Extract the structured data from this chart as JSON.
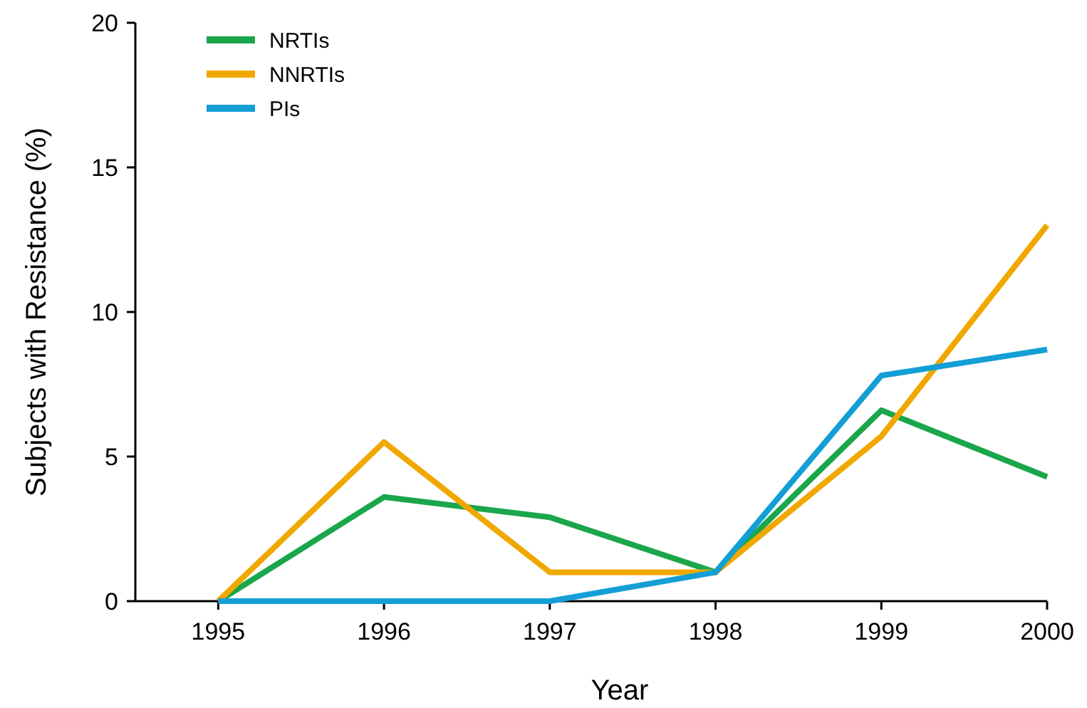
{
  "chart_data": {
    "type": "line",
    "xlabel": "Year",
    "ylabel": "Subjects with Resistance (%)",
    "x": [
      1995,
      1996,
      1997,
      1998,
      1999,
      2000
    ],
    "series": [
      {
        "name": "NRTIs",
        "color": "#1aa64b",
        "values": [
          0,
          3.6,
          2.9,
          1.0,
          6.6,
          4.3
        ]
      },
      {
        "name": "NNRTIs",
        "color": "#f0a800",
        "values": [
          0,
          5.5,
          1.0,
          1.0,
          5.7,
          13.0
        ]
      },
      {
        "name": "PIs",
        "color": "#139fd6",
        "values": [
          0,
          0,
          0,
          1.0,
          7.8,
          8.7
        ]
      }
    ],
    "xlim": [
      1994.5,
      2000
    ],
    "xticks": [
      1995,
      1996,
      1997,
      1998,
      1999,
      2000
    ],
    "ylim": [
      0,
      20
    ],
    "yticks": [
      0,
      5,
      10,
      15,
      20
    ],
    "grid": false,
    "legend": "top left",
    "marker": "none",
    "line_style": "solid"
  }
}
